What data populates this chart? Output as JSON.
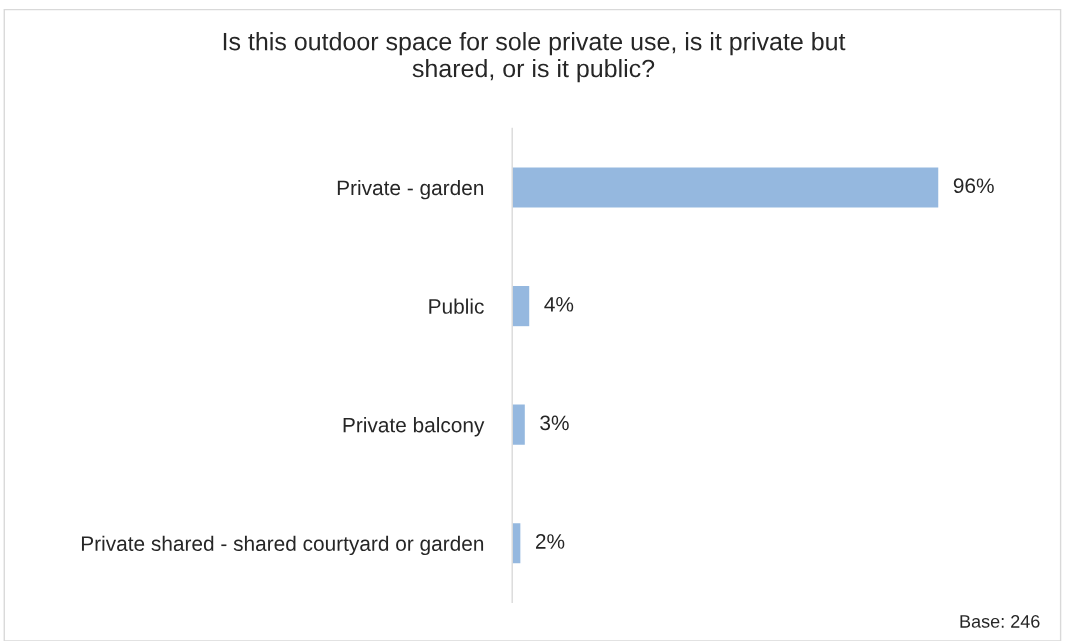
{
  "chart_data": {
    "type": "bar",
    "orientation": "horizontal",
    "title": "Is this outdoor space for sole private use, is it private but\nshared, or is it public?",
    "categories": [
      "Private - garden",
      "Public",
      "Private balcony",
      "Private shared - shared courtyard or garden"
    ],
    "values": [
      96,
      4,
      3,
      2
    ],
    "color": "#95b8df",
    "value_labels": [
      "96%",
      "4%",
      "3%",
      "2%"
    ],
    "annotations": [
      "Base: 246"
    ],
    "grid": false,
    "legend": false
  }
}
